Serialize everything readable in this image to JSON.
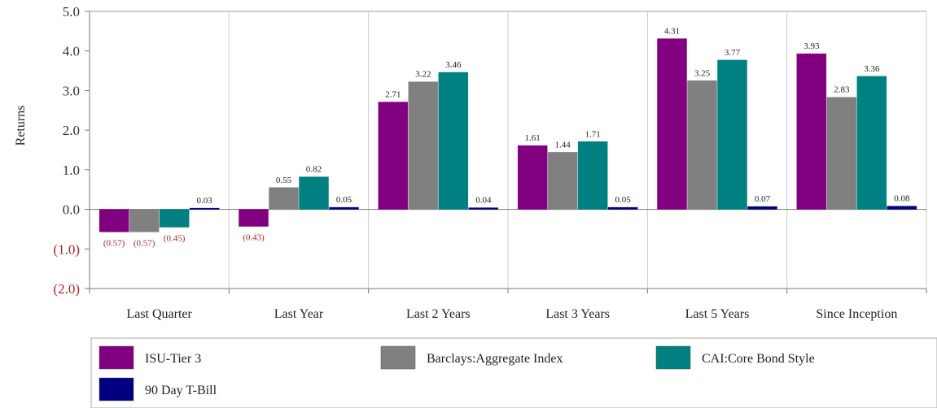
{
  "chart_data": {
    "type": "bar",
    "ylabel": "Returns",
    "ylim": [
      -2.0,
      5.0
    ],
    "yticks": [
      {
        "value": 5.0,
        "label": "5.0"
      },
      {
        "value": 4.0,
        "label": "4.0"
      },
      {
        "value": 3.0,
        "label": "3.0"
      },
      {
        "value": 2.0,
        "label": "2.0"
      },
      {
        "value": 1.0,
        "label": "1.0"
      },
      {
        "value": 0.0,
        "label": "0.0"
      },
      {
        "value": -1.0,
        "label": "(1.0)"
      },
      {
        "value": -2.0,
        "label": "(2.0)"
      }
    ],
    "categories": [
      "Last Quarter",
      "Last Year",
      "Last 2 Years",
      "Last 3 Years",
      "Last 5 Years",
      "Since Inception"
    ],
    "series": [
      {
        "name": "ISU-Tier 3",
        "color": "#800080",
        "values": [
          -0.57,
          -0.43,
          2.71,
          1.61,
          4.31,
          3.93
        ],
        "labels": [
          "(0.57)",
          "(0.43)",
          "2.71",
          "1.61",
          "4.31",
          "3.93"
        ]
      },
      {
        "name": "Barclays:Aggregate Index",
        "color": "#808080",
        "values": [
          -0.57,
          0.55,
          3.22,
          1.44,
          3.25,
          2.83
        ],
        "labels": [
          "(0.57)",
          "0.55",
          "3.22",
          "1.44",
          "3.25",
          "2.83"
        ]
      },
      {
        "name": "CAI:Core Bond Style",
        "color": "#008080",
        "values": [
          -0.45,
          0.82,
          3.46,
          1.71,
          3.77,
          3.36
        ],
        "labels": [
          "(0.45)",
          "0.82",
          "3.46",
          "1.71",
          "3.77",
          "3.36"
        ]
      },
      {
        "name": "90 Day T-Bill",
        "color": "#000080",
        "values": [
          0.03,
          0.05,
          0.04,
          0.05,
          0.07,
          0.08
        ],
        "labels": [
          "0.03",
          "0.05",
          "0.04",
          "0.05",
          "0.07",
          "0.08"
        ]
      }
    ],
    "negative_label_color": "#b22222",
    "grid": "vertical-separators",
    "legend_position": "bottom"
  }
}
